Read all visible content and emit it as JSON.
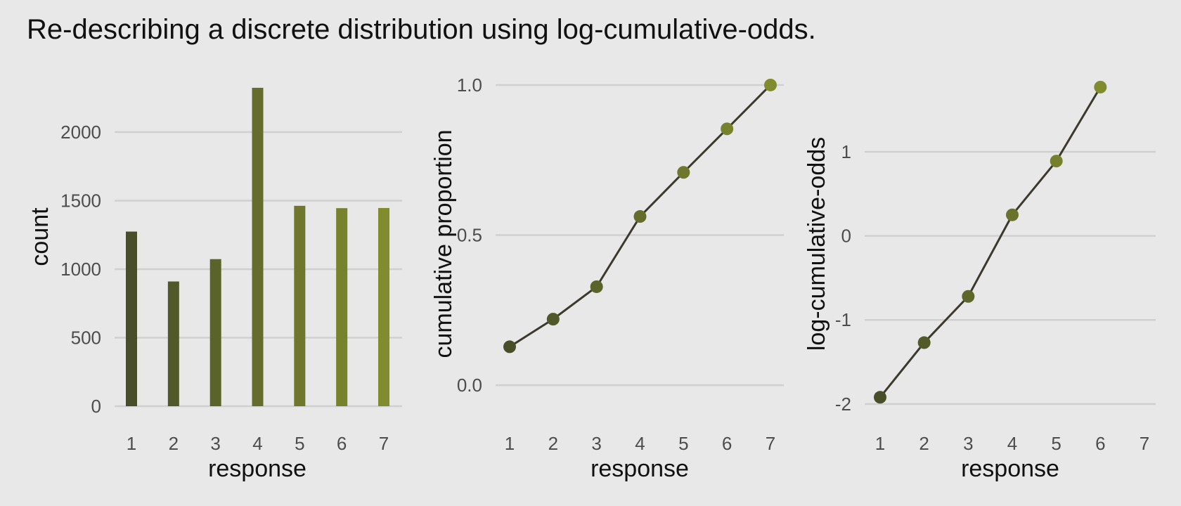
{
  "title": "Re-describing a discrete distribution using log-cumulative-odds.",
  "colors": {
    "background": "#e8e8e8",
    "grid": "#d0d0d0",
    "line": "#3b3a2c",
    "shade_start": "#474e28",
    "shade_end": "#818c2e"
  },
  "chart_data": [
    {
      "type": "bar",
      "categories": [
        "1",
        "2",
        "3",
        "4",
        "5",
        "6",
        "7"
      ],
      "values": [
        1274,
        910,
        1073,
        2323,
        1462,
        1445,
        1446
      ],
      "xlabel": "response",
      "ylabel": "count",
      "ylim": [
        0,
        2420
      ],
      "yticks": [
        0,
        500,
        1000,
        1500,
        2000
      ],
      "ytick_labels": [
        "0",
        "500",
        "1000",
        "1500",
        "2000"
      ]
    },
    {
      "type": "line",
      "x": [
        1,
        2,
        3,
        4,
        5,
        6,
        7
      ],
      "y": [
        0.128,
        0.22,
        0.328,
        0.562,
        0.709,
        0.854,
        1.0
      ],
      "xtick_labels": [
        "1",
        "2",
        "3",
        "4",
        "5",
        "6",
        "7"
      ],
      "xlabel": "response",
      "ylabel": "cumulative proportion",
      "ylim": [
        -0.07,
        1.035
      ],
      "yticks": [
        0,
        0.5,
        1.0
      ],
      "ytick_labels": [
        "0.0",
        "0.5",
        "1.0"
      ]
    },
    {
      "type": "line",
      "x": [
        1,
        2,
        3,
        4,
        5,
        6
      ],
      "y": [
        -1.92,
        -1.27,
        -0.72,
        0.25,
        0.89,
        1.77
      ],
      "xtick_labels": [
        "1",
        "2",
        "3",
        "4",
        "5",
        "6",
        "7"
      ],
      "xlabel": "response",
      "ylabel": "log-cumulative-odds",
      "ylim": [
        -2.11,
        1.92
      ],
      "yticks": [
        -2,
        -1,
        0,
        1
      ],
      "ytick_labels": [
        "-2",
        "-1",
        "0",
        "1"
      ]
    }
  ]
}
